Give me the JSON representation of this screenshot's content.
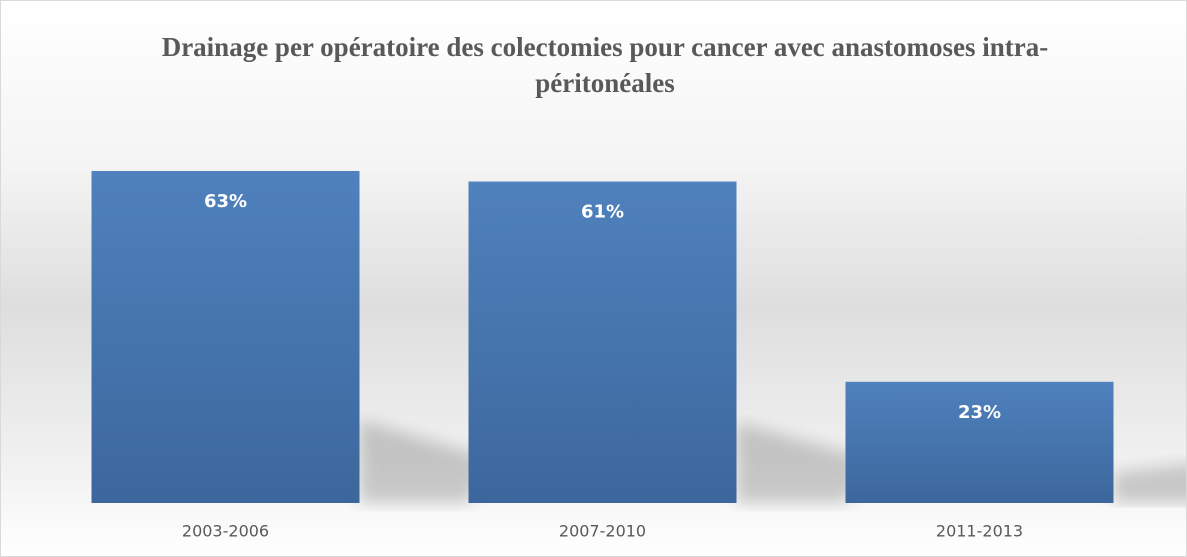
{
  "chart_data": {
    "type": "bar",
    "title": "Drainage per opératoire des colectomies pour cancer avec anastomoses intra-péritonéales",
    "categories": [
      "2003-2006",
      "2007-2010",
      "2011-2013"
    ],
    "values": [
      63,
      61,
      23
    ],
    "value_labels": [
      "63%",
      "61%",
      "23%"
    ],
    "color": "#4f81bd"
  }
}
